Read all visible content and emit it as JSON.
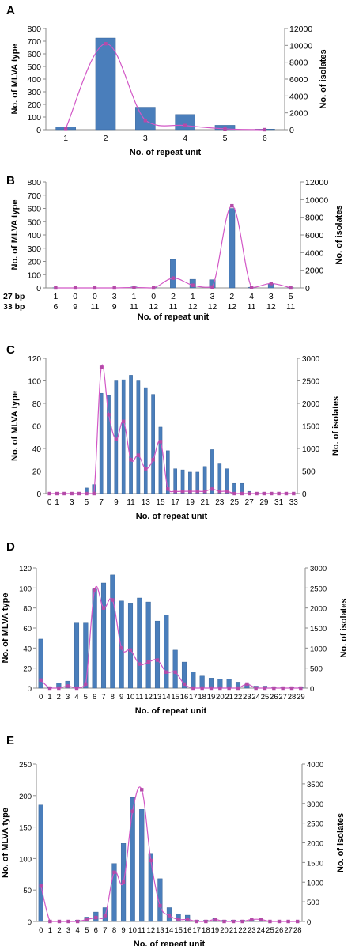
{
  "chart_data": [
    {
      "panel": "A",
      "type": "bar",
      "xlabel": "No. of repeat unit",
      "ylabel": "No. of MLVA type",
      "y2label": "No. of isolates",
      "categories": [
        "1",
        "2",
        "3",
        "4",
        "5",
        "6"
      ],
      "ylim": [
        0,
        800
      ],
      "yticks": [
        0,
        100,
        200,
        300,
        400,
        500,
        600,
        700,
        800
      ],
      "y2lim": [
        0,
        12000
      ],
      "y2ticks": [
        0,
        2000,
        4000,
        6000,
        8000,
        10000,
        12000
      ],
      "series": [
        {
          "axis": "left",
          "kind": "bar",
          "values": [
            20,
            725,
            178,
            120,
            35,
            5
          ]
        },
        {
          "axis": "right",
          "kind": "line",
          "values": [
            150,
            10200,
            1100,
            500,
            100,
            0
          ]
        }
      ]
    },
    {
      "panel": "B",
      "type": "bar",
      "xlabel": "No. of repeat unit",
      "ylabel": "No. of MLVA  type",
      "y2label": "No. of isolates",
      "categories": [
        "1|6",
        "0|9",
        "0|11",
        "3|9",
        "1|11",
        "0|12",
        "2|11",
        "1|12",
        "3|12",
        "2|12",
        "4|11",
        "3|12",
        "5|11"
      ],
      "row_labels": [
        "27 bp",
        "33 bp"
      ],
      "rows": [
        [
          "1",
          "0",
          "0",
          "3",
          "1",
          "0",
          "2",
          "1",
          "3",
          "2",
          "4",
          "3",
          "5"
        ],
        [
          "6",
          "9",
          "11",
          "9",
          "11",
          "12",
          "11",
          "12",
          "12",
          "12",
          "11",
          "12",
          "11"
        ]
      ],
      "ylim": [
        0,
        800
      ],
      "yticks": [
        0,
        100,
        200,
        300,
        400,
        500,
        600,
        700,
        800
      ],
      "y2lim": [
        0,
        12000
      ],
      "y2ticks": [
        0,
        2000,
        4000,
        6000,
        8000,
        10000,
        12000
      ],
      "series": [
        {
          "axis": "left",
          "kind": "bar",
          "values": [
            1,
            1,
            1,
            2,
            8,
            2,
            215,
            65,
            62,
            600,
            5,
            30,
            2
          ]
        },
        {
          "axis": "right",
          "kind": "line",
          "values": [
            0,
            0,
            0,
            0,
            50,
            0,
            1100,
            300,
            100,
            9300,
            50,
            500,
            0
          ]
        }
      ]
    },
    {
      "panel": "C",
      "type": "bar",
      "xlabel": "No. of repeat unit",
      "ylabel": "No. of MLVA  type",
      "y2label": "No. of isolates",
      "categories": [
        "0",
        "1",
        "2",
        "3",
        "4",
        "5",
        "6",
        "7",
        "8",
        "9",
        "10",
        "11",
        "12",
        "13",
        "14",
        "15",
        "16",
        "17",
        "18",
        "19",
        "20",
        "21",
        "22",
        "23",
        "24",
        "25",
        "26",
        "27",
        "28",
        "29",
        "30",
        "31",
        "32",
        "33"
      ],
      "tick_labels": [
        "0",
        "1",
        "3",
        "5",
        "7",
        "9",
        "11",
        "13",
        "15",
        "17",
        "19",
        "21",
        "23",
        "25",
        "27",
        "29",
        "31",
        "33"
      ],
      "ylim": [
        0,
        120
      ],
      "yticks": [
        0,
        20,
        40,
        60,
        80,
        100,
        120
      ],
      "y2lim": [
        0,
        3000
      ],
      "y2ticks": [
        0,
        500,
        1000,
        1500,
        2000,
        2500,
        3000
      ],
      "series": [
        {
          "axis": "left",
          "kind": "bar",
          "values": [
            0,
            0,
            0,
            0,
            0,
            5,
            8,
            89,
            87,
            100,
            101,
            105,
            100,
            94,
            88,
            59,
            38,
            22,
            21,
            19,
            19,
            24,
            39,
            27,
            22,
            9,
            9,
            2,
            1,
            1,
            1,
            0,
            0,
            0
          ]
        },
        {
          "axis": "right",
          "kind": "line",
          "values": [
            0,
            0,
            0,
            0,
            0,
            0,
            0,
            2800,
            1750,
            1200,
            1600,
            750,
            850,
            550,
            750,
            1150,
            100,
            50,
            50,
            50,
            50,
            50,
            100,
            50,
            50,
            0,
            0,
            0,
            0,
            0,
            0,
            0,
            0,
            0
          ]
        }
      ]
    },
    {
      "panel": "D",
      "type": "bar",
      "xlabel": "No. of repeat unit",
      "ylabel": "No. of MLVA type",
      "y2label": "No. of isolates",
      "categories": [
        "0",
        "1",
        "2",
        "3",
        "4",
        "5",
        "6",
        "7",
        "8",
        "9",
        "10",
        "11",
        "12",
        "13",
        "14",
        "15",
        "16",
        "17",
        "18",
        "19",
        "20",
        "21",
        "22",
        "23",
        "24",
        "25",
        "26",
        "27",
        "28",
        "29"
      ],
      "ylim": [
        0,
        120
      ],
      "yticks": [
        0,
        20,
        40,
        60,
        80,
        100,
        120
      ],
      "y2lim": [
        0,
        3000
      ],
      "y2ticks": [
        0,
        500,
        1000,
        1500,
        2000,
        2500,
        3000
      ],
      "series": [
        {
          "axis": "left",
          "kind": "bar",
          "values": [
            49,
            1,
            5,
            7,
            65,
            65,
            99,
            105,
            113,
            87,
            85,
            90,
            86,
            67,
            73,
            38,
            26,
            16,
            12,
            10,
            9,
            9,
            6,
            4,
            2,
            2,
            1,
            1,
            1,
            1
          ]
        },
        {
          "axis": "right",
          "kind": "line",
          "values": [
            200,
            0,
            0,
            50,
            0,
            100,
            2450,
            2000,
            2200,
            1000,
            950,
            600,
            650,
            700,
            400,
            400,
            100,
            0,
            0,
            0,
            0,
            0,
            0,
            100,
            0,
            0,
            0,
            0,
            0,
            0
          ]
        }
      ]
    },
    {
      "panel": "E",
      "type": "bar",
      "xlabel": "No. of repeat unit",
      "ylabel": "No. of MLVA  type",
      "y2label": "No. of isolates",
      "categories": [
        "0",
        "1",
        "2",
        "3",
        "4",
        "5",
        "6",
        "7",
        "8",
        "9",
        "10",
        "11",
        "12",
        "13",
        "14",
        "15",
        "16",
        "17",
        "18",
        "19",
        "20",
        "21",
        "22",
        "23",
        "24",
        "25",
        "26",
        "27",
        "28"
      ],
      "ylim": [
        0,
        250
      ],
      "yticks": [
        0,
        50,
        100,
        150,
        200,
        250
      ],
      "y2lim": [
        0,
        4000
      ],
      "y2ticks": [
        0,
        500,
        1000,
        1500,
        2000,
        2500,
        3000,
        3500,
        4000
      ],
      "series": [
        {
          "axis": "left",
          "kind": "bar",
          "values": [
            185,
            1,
            1,
            1,
            2,
            7,
            15,
            22,
            92,
            124,
            197,
            178,
            107,
            68,
            22,
            12,
            10,
            2,
            2,
            5,
            2,
            2,
            2,
            2,
            1,
            1,
            1,
            1,
            1
          ]
        },
        {
          "axis": "right",
          "kind": "line",
          "values": [
            900,
            0,
            0,
            0,
            0,
            50,
            100,
            150,
            1250,
            1000,
            2800,
            3350,
            1550,
            400,
            150,
            50,
            50,
            0,
            0,
            50,
            0,
            0,
            0,
            50,
            50,
            0,
            0,
            0,
            0
          ]
        }
      ]
    }
  ],
  "colors": {
    "bar": "#4A7EBB",
    "bar_edge": "#2E5A8F",
    "line": "#D257C6",
    "marker": "#B44BA8",
    "axis": "#8C8C8C",
    "text": "#000000"
  }
}
